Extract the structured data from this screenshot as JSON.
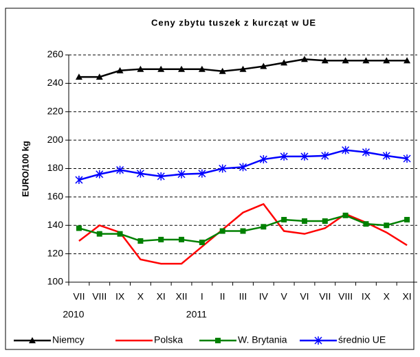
{
  "chart_data": {
    "type": "line",
    "title": "Ceny zbytu tuszek z kurcząt w UE",
    "y_label": "EURO/100 kg",
    "categories": [
      "VII",
      "VIII",
      "IX",
      "X",
      "XI",
      "XII",
      "I",
      "II",
      "III",
      "IV",
      "V",
      "VI",
      "VII",
      "VIII",
      "IX",
      "X",
      "XI"
    ],
    "x_sublabels": [
      "2010",
      null,
      null,
      null,
      null,
      null,
      "2011",
      null,
      null,
      null,
      null,
      null,
      null,
      null,
      null,
      null,
      null
    ],
    "series": [
      {
        "name": "Niemcy",
        "color": "#000000",
        "marker": "triangle",
        "values": [
          244.5,
          244.5,
          249,
          250,
          250,
          250,
          250,
          248.5,
          250,
          252,
          254.5,
          257,
          256,
          256,
          256,
          256,
          256
        ]
      },
      {
        "name": "Polska",
        "color": "#ff0000",
        "marker": "none",
        "values": [
          129,
          140,
          135,
          116,
          113,
          113,
          125,
          137,
          149,
          155,
          136,
          134,
          138,
          148,
          142,
          135,
          126
        ]
      },
      {
        "name": "W. Brytania",
        "color": "#008000",
        "marker": "square",
        "values": [
          138,
          134,
          134,
          129,
          130,
          130,
          128,
          136,
          136,
          139,
          144,
          143,
          143,
          147,
          141,
          140,
          144
        ]
      },
      {
        "name": "średnio UE",
        "color": "#0000ff",
        "marker": "asterisk",
        "values": [
          172,
          176,
          179,
          176.5,
          174.5,
          176,
          176.5,
          180,
          181,
          186.5,
          188.5,
          188.5,
          189,
          193,
          191.5,
          189,
          187
        ]
      }
    ],
    "ylim": [
      100,
      260
    ],
    "yticks": [
      100,
      120,
      140,
      160,
      180,
      200,
      220,
      240,
      260
    ],
    "grid": true
  }
}
